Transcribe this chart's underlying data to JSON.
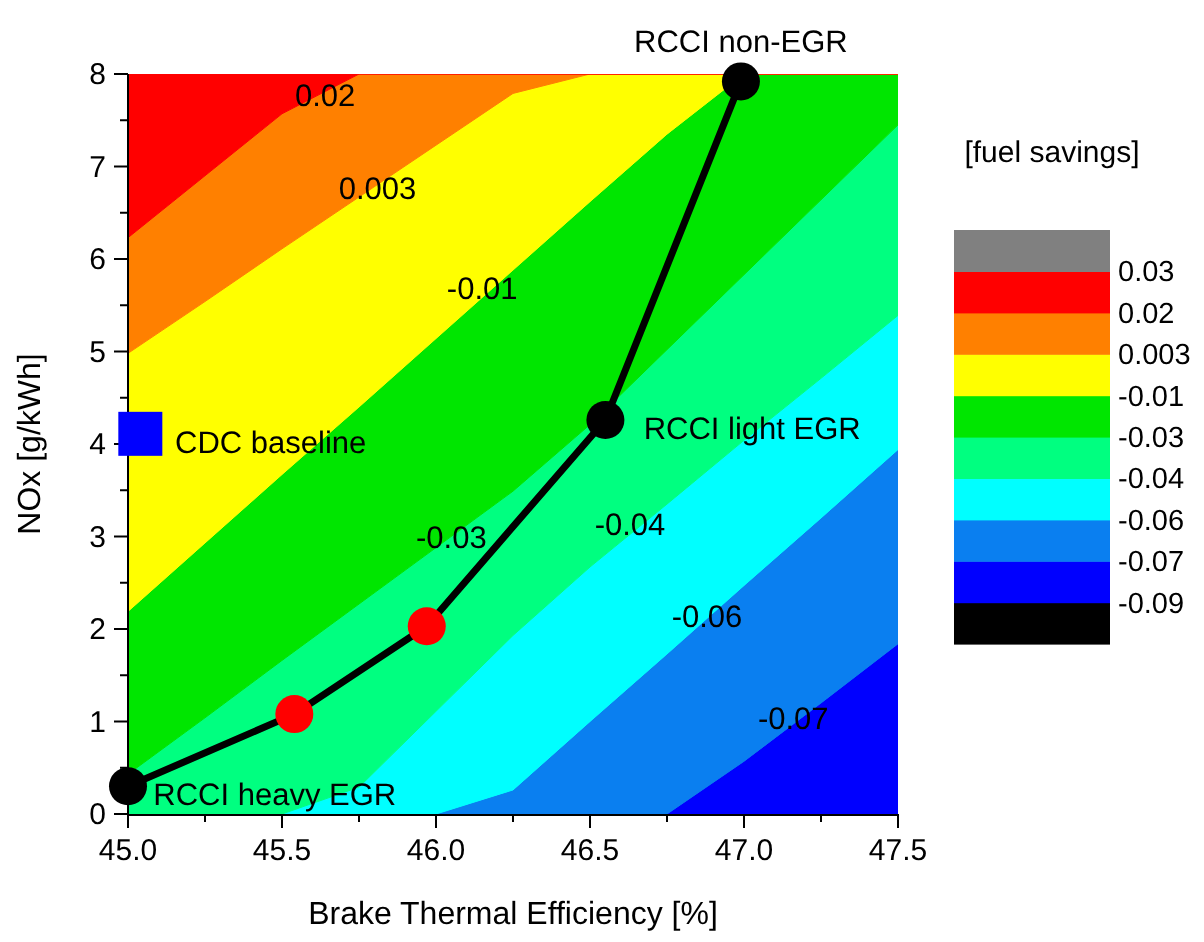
{
  "chart_data": {
    "type": "area",
    "stacked": true,
    "xlabel": "Brake Thermal Efficiency [%]",
    "ylabel": "NOx [g/kWh]",
    "clabel": "[fuel savings]",
    "x": [
      45,
      45.25,
      45.5,
      45.75,
      46,
      46.25,
      46.5,
      46.75,
      47,
      47.25,
      47.5
    ],
    "series": [
      {
        "color": "#0000ff",
        "values": [
          0,
          0,
          0,
          0,
          0,
          0,
          0,
          0,
          0.57,
          1.2,
          1.84
        ]
      },
      {
        "color": "#0a7ff0",
        "values": [
          0,
          0,
          0,
          0,
          0,
          0.26,
          1.0,
          1.73,
          1.9,
          2.0,
          2.1
        ]
      },
      {
        "color": "#00ffff",
        "values": [
          0,
          0,
          0,
          0.29,
          1.11,
          1.67,
          1.67,
          1.62,
          1.57,
          1.51,
          1.45
        ]
      },
      {
        "color": "#00ff80",
        "values": [
          0.43,
          1.04,
          1.66,
          1.98,
          1.77,
          1.56,
          1.54,
          1.67,
          1.79,
          1.93,
          2.06
        ]
      },
      {
        "color": "#00e600",
        "values": [
          1.76,
          1.89,
          2.01,
          2.13,
          2.26,
          2.39,
          2.41,
          2.33,
          2.17,
          1.36,
          0.55
        ]
      },
      {
        "color": "#ffff00",
        "values": [
          2.79,
          2.61,
          2.44,
          2.27,
          2.09,
          1.91,
          1.38,
          0.65,
          0,
          0,
          0
        ]
      },
      {
        "color": "#ff8000",
        "values": [
          1.25,
          1.36,
          1.46,
          1.33,
          0.77,
          0.21,
          0,
          0,
          0,
          0,
          0
        ]
      },
      {
        "color": "#ff0000",
        "values": [
          1.77,
          1.1,
          0.43,
          0,
          0,
          0,
          0,
          0,
          0,
          0,
          0
        ]
      },
      {
        "type": "line",
        "color": "#000000",
        "colors": [
          "#000000",
          "#ff0000",
          "#ff0000",
          "#000000",
          "#000000"
        ],
        "marker": "circle",
        "x": [
          45.0,
          45.54,
          45.97,
          46.55,
          46.99
        ],
        "values": [
          0.3,
          1.08,
          2.03,
          4.26,
          7.92
        ]
      },
      {
        "type": "scatter",
        "color": "#0000ff",
        "marker": "square",
        "x": [
          45.04
        ],
        "values": [
          4.11
        ]
      }
    ],
    "colors": [
      "#000000",
      "#0000ff",
      "#0a7ff0",
      "#00ffff",
      "#00ff80",
      "#00e600",
      "#ffff00",
      "#ff8000",
      "#ff0000",
      "#808080"
    ],
    "cticks": [
      -0.09,
      -0.07,
      -0.06,
      -0.04,
      -0.03,
      -0.01,
      0.003,
      0.02,
      0.03
    ],
    "xlim": [
      45,
      47.5
    ],
    "ylim": [
      0,
      8
    ],
    "xticks": [
      {
        "value": 45,
        "label": "45.0"
      },
      {
        "value": 45.25,
        "label": null
      },
      {
        "value": 45.5,
        "label": "45.5"
      },
      {
        "value": 45.75,
        "label": null
      },
      {
        "value": 46,
        "label": "46.0"
      },
      {
        "value": 46.25,
        "label": null
      },
      {
        "value": 46.5,
        "label": "46.5"
      },
      {
        "value": 46.75,
        "label": null
      },
      {
        "value": 47,
        "label": "47.0"
      },
      {
        "value": 47.25,
        "label": null
      },
      {
        "value": 47.5,
        "label": "47.5"
      }
    ],
    "yticks": [
      0,
      {
        "value": 0.5,
        "label": null
      },
      1,
      {
        "value": 1.5,
        "label": null
      },
      2,
      {
        "value": 2.5,
        "label": null
      },
      3,
      {
        "value": 3.5,
        "label": null
      },
      4,
      {
        "value": 4.5,
        "label": null
      },
      5,
      {
        "value": 5.5,
        "label": null
      },
      6,
      {
        "value": 6.5,
        "label": null
      },
      7,
      {
        "value": 7.5,
        "label": null
      },
      8
    ],
    "annotations": [
      {
        "text": "RCCI non-EGR",
        "x": 46.99,
        "y": 7.92
      },
      {
        "text": "RCCI light EGR",
        "x": 46.55,
        "y": 4.26
      },
      {
        "text": "RCCI heavy EGR",
        "x": 45.0,
        "y": 0.3
      },
      {
        "text": "CDC baseline",
        "x": 45.04,
        "y": 4.11
      },
      {
        "text": "0.02",
        "x": 45.64,
        "y": 7.77
      },
      {
        "text": "0.003",
        "x": 45.81,
        "y": 6.77
      },
      {
        "text": "-0.01",
        "x": 46.15,
        "y": 5.69
      },
      {
        "text": "-0.03",
        "x": 46.05,
        "y": 3.0
      },
      {
        "text": "-0.04",
        "x": 46.63,
        "y": 3.14
      },
      {
        "text": "-0.06",
        "x": 46.88,
        "y": 2.14
      },
      {
        "text": "-0.07",
        "x": 47.16,
        "y": 1.04
      }
    ]
  }
}
